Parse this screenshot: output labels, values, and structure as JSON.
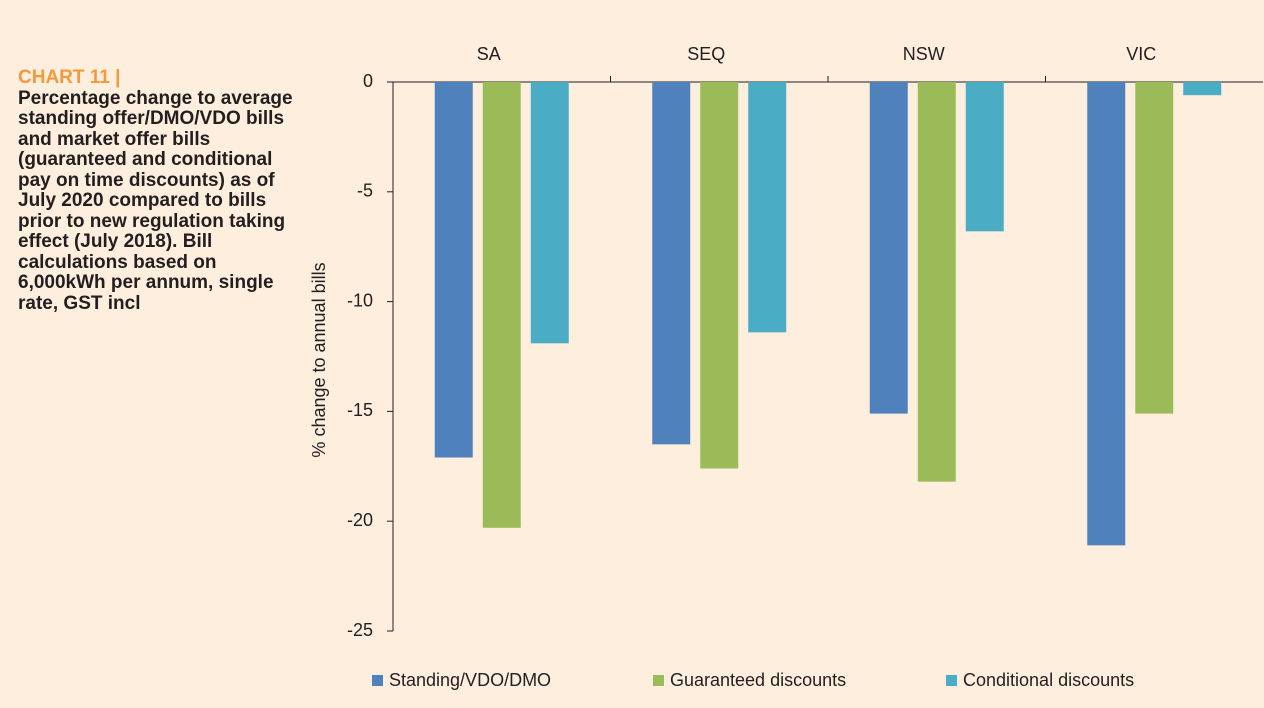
{
  "chart_data": {
    "type": "bar",
    "chart_number": "CHART 11 |",
    "title": "Percentage change to average standing offer/DMO/VDO bills and market offer bills (guaranteed and conditional pay on time discounts) as of July 2020 compared to bills prior to new regulation taking effect (July 2018). Bill calculations based on 6,000kWh per annum, single rate, GST incl",
    "y_label": "% change to annual bills",
    "categories": [
      "SA",
      "SEQ",
      "NSW",
      "VIC"
    ],
    "series": [
      {
        "name": "Standing/VDO/DMO",
        "color": "#4f81bd",
        "values": [
          -17.1,
          -16.5,
          -15.1,
          -21.1
        ]
      },
      {
        "name": "Guaranteed discounts",
        "color": "#9bbb59",
        "values": [
          -20.3,
          -17.6,
          -18.2,
          -15.1
        ]
      },
      {
        "name": "Conditional discounts",
        "color": "#4bacc6",
        "values": [
          -11.9,
          -11.4,
          -6.8,
          -0.6
        ]
      }
    ],
    "ylim": [
      -25,
      0
    ],
    "yticks": [
      0,
      -5,
      -10,
      -15,
      -20,
      -25
    ],
    "legend": "bottom"
  }
}
